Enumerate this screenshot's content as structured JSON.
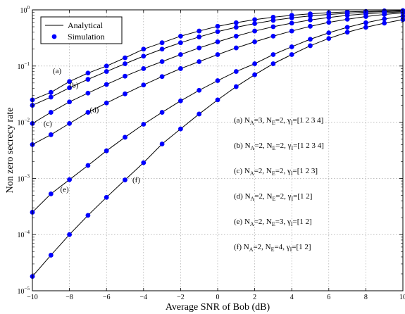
{
  "chart_data": {
    "type": "line",
    "xlabel": "Average SNR of Bob (dB)",
    "ylabel": "Non zero secrecy rate",
    "xlim": [
      -10,
      10
    ],
    "ylim": [
      1e-05,
      1
    ],
    "yscale": "log",
    "x_ticks": [
      "−10",
      "−8",
      "−6",
      "−4",
      "−2",
      "0",
      "2",
      "4",
      "6",
      "8",
      "10"
    ],
    "y_ticks": [
      {
        "base": "10",
        "exp": "−5"
      },
      {
        "base": "10",
        "exp": "−4"
      },
      {
        "base": "10",
        "exp": "−3"
      },
      {
        "base": "10",
        "exp": "−2"
      },
      {
        "base": "10",
        "exp": "−1"
      },
      {
        "base": "10",
        "exp": "0"
      }
    ],
    "legend": {
      "position": "top-left",
      "entries": [
        {
          "label": "Analytical",
          "marker": "line"
        },
        {
          "label": "Simulation",
          "marker": "dot"
        }
      ]
    },
    "line_color": "#000000",
    "marker_color": "#0000ff",
    "series": [
      {
        "tag": "(a)",
        "x": [
          -10,
          -9,
          -8,
          -7,
          -6,
          -5,
          -4,
          -3,
          -2,
          -1,
          0,
          1,
          2,
          3,
          4,
          5,
          6,
          7,
          8,
          9,
          10
        ],
        "y": [
          0.025,
          0.034,
          0.053,
          0.075,
          0.1,
          0.14,
          0.2,
          0.26,
          0.34,
          0.42,
          0.51,
          0.59,
          0.67,
          0.74,
          0.8,
          0.85,
          0.89,
          0.92,
          0.94,
          0.96,
          0.97
        ]
      },
      {
        "tag": "(b)",
        "x": [
          -10,
          -9,
          -8,
          -7,
          -6,
          -5,
          -4,
          -3,
          -2,
          -1,
          0,
          1,
          2,
          3,
          4,
          5,
          6,
          7,
          8,
          9,
          10
        ],
        "y": [
          0.02,
          0.028,
          0.041,
          0.058,
          0.08,
          0.11,
          0.15,
          0.2,
          0.26,
          0.33,
          0.41,
          0.49,
          0.57,
          0.65,
          0.72,
          0.78,
          0.83,
          0.87,
          0.91,
          0.93,
          0.95
        ]
      },
      {
        "tag": "(c)",
        "x": [
          -10,
          -9,
          -8,
          -7,
          -6,
          -5,
          -4,
          -3,
          -2,
          -1,
          0,
          1,
          2,
          3,
          4,
          5,
          6,
          7,
          8,
          9,
          10
        ],
        "y": [
          0.0095,
          0.015,
          0.023,
          0.033,
          0.047,
          0.066,
          0.09,
          0.12,
          0.16,
          0.21,
          0.27,
          0.34,
          0.42,
          0.5,
          0.58,
          0.66,
          0.73,
          0.8,
          0.85,
          0.89,
          0.92
        ]
      },
      {
        "tag": "(d)",
        "x": [
          -10,
          -9,
          -8,
          -7,
          -6,
          -5,
          -4,
          -3,
          -2,
          -1,
          0,
          1,
          2,
          3,
          4,
          5,
          6,
          7,
          8,
          9,
          10
        ],
        "y": [
          0.004,
          0.006,
          0.0095,
          0.015,
          0.022,
          0.032,
          0.046,
          0.065,
          0.09,
          0.12,
          0.16,
          0.21,
          0.27,
          0.34,
          0.42,
          0.51,
          0.6,
          0.68,
          0.76,
          0.83,
          0.88
        ]
      },
      {
        "tag": "(e)",
        "x": [
          -10,
          -9,
          -8,
          -7,
          -6,
          -5,
          -4,
          -3,
          -2,
          -1,
          0,
          1,
          2,
          3,
          4,
          5,
          6,
          7,
          8,
          9,
          10
        ],
        "y": [
          0.00025,
          0.00053,
          0.00095,
          0.0017,
          0.0031,
          0.0054,
          0.0092,
          0.015,
          0.024,
          0.037,
          0.055,
          0.08,
          0.11,
          0.16,
          0.22,
          0.3,
          0.39,
          0.49,
          0.59,
          0.69,
          0.77
        ]
      },
      {
        "tag": "(f)",
        "x": [
          -10,
          -9,
          -8,
          -7,
          -6,
          -5,
          -4,
          -3,
          -2,
          -1,
          0,
          1,
          2,
          3,
          4,
          5,
          6,
          7,
          8,
          9,
          10
        ],
        "y": [
          1.8e-05,
          4.3e-05,
          0.0001,
          0.00022,
          0.00046,
          0.00094,
          0.0019,
          0.0041,
          0.0076,
          0.014,
          0.025,
          0.043,
          0.07,
          0.11,
          0.16,
          0.23,
          0.31,
          0.4,
          0.49,
          0.58,
          0.67
        ]
      }
    ],
    "annotations": [
      {
        "tag": "(a)",
        "text": [
          "(a) N",
          "A",
          "=3, N",
          "E",
          "=2, γ",
          "I",
          "=[1 2 3 4]"
        ]
      },
      {
        "tag": "(b)",
        "text": [
          "(b) N",
          "A",
          "=2, N",
          "E",
          "=2, γ",
          "I",
          "=[1 2 3 4]"
        ]
      },
      {
        "tag": "(c)",
        "text": [
          "(c) N",
          "A",
          "=2, N",
          "E",
          "=2, γ",
          "I",
          "=[1 2 3]"
        ]
      },
      {
        "tag": "(d)",
        "text": [
          "(d) N",
          "A",
          "=2, N",
          "E",
          "=2, γ",
          "I",
          "=[1 2]"
        ]
      },
      {
        "tag": "(e)",
        "text": [
          "(e) N",
          "A",
          "=2, N",
          "E",
          "=3, γ",
          "I",
          "=[1 2]"
        ]
      },
      {
        "tag": "(f)",
        "text": [
          "(f) N",
          "A",
          "=2, N",
          "E",
          "=4, γ",
          "I",
          "=[1 2]"
        ]
      }
    ]
  }
}
